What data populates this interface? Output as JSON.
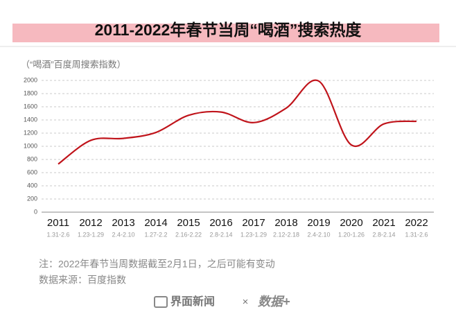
{
  "chart_data": {
    "type": "line",
    "title": "2011-2022年春节当周“喝酒”搜索热度",
    "subtitle": "（“喝酒”百度周搜索指数）",
    "categories": [
      "2011",
      "2012",
      "2013",
      "2014",
      "2015",
      "2016",
      "2017",
      "2018",
      "2019",
      "2020",
      "2021",
      "2022"
    ],
    "x_sublabels": [
      "1.31-2.6",
      "1.23-1.29",
      "2.4-2.10",
      "1.27-2.2",
      "2.16-2.22",
      "2.8-2.14",
      "1.23-1.29",
      "2.12-2.18",
      "2.4-2.10",
      "1.20-1.26",
      "2.8-2.14",
      "1.31-2.6"
    ],
    "series": [
      {
        "name": "喝酒",
        "color": "#c0141b",
        "values": [
          730,
          1090,
          1120,
          1210,
          1470,
          1520,
          1360,
          1580,
          1990,
          1020,
          1340,
          1380
        ]
      }
    ],
    "ylim": [
      0,
      2000
    ],
    "yticks": [
      0,
      200,
      400,
      600,
      800,
      1000,
      1200,
      1400,
      1600,
      1800,
      2000
    ],
    "grid": true,
    "notes": [
      "注：2022年春节当周数据截至2月1日，之后可能有变动",
      "数据来源：百度指数"
    ]
  },
  "footer": {
    "brand": "界面新闻",
    "separator": "×",
    "partner": "数据+"
  }
}
